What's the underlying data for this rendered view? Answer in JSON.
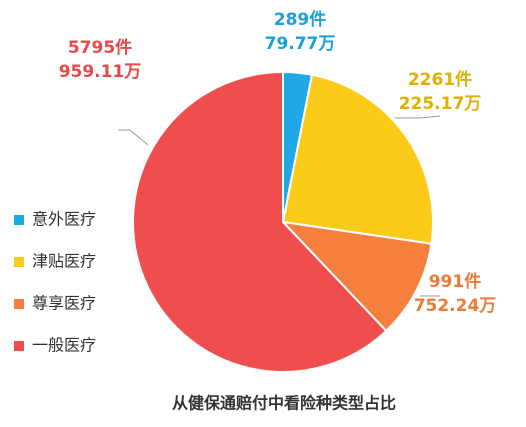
{
  "chart_data": {
    "type": "pie",
    "title": "从健保通赔付中看险种类型占比",
    "categories": [
      "意外医疗",
      "津贴医疗",
      "尊享医疗",
      "一般医疗"
    ],
    "values": [
      289,
      2261,
      991,
      5795
    ],
    "value_labels": [
      "289件",
      "2261件",
      "991件",
      "5795件"
    ],
    "amount_labels": [
      "79.77万",
      "225.17万",
      "752.24万",
      "959.11万"
    ],
    "colors": [
      "#1ea8e6",
      "#fccb1a",
      "#f5803e",
      "#f04e4e"
    ],
    "label_colors": [
      "#1b9fd9",
      "#e0b000",
      "#ef7a36",
      "#e84848"
    ],
    "legend": "left"
  }
}
